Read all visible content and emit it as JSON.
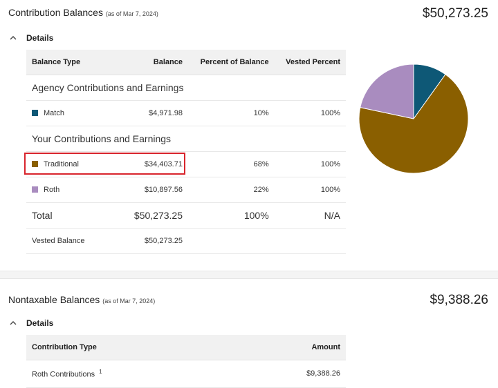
{
  "contribution": {
    "title": "Contribution Balances",
    "as_of": "(as of Mar 7, 2024)",
    "total": "$50,273.25",
    "details_label": "Details",
    "headers": [
      "Balance Type",
      "Balance",
      "Percent of Balance",
      "Vested Percent"
    ],
    "group_agency": "Agency Contributions and Earnings",
    "group_yours": "Your Contributions and Earnings",
    "rows": [
      {
        "name": "Match",
        "balance": "$4,971.98",
        "percent": "10%",
        "vested": "100%",
        "color": "#0e5876"
      },
      {
        "name": "Traditional",
        "balance": "$34,403.71",
        "percent": "68%",
        "vested": "100%",
        "color": "#8a5f00"
      },
      {
        "name": "Roth",
        "balance": "$10,897.56",
        "percent": "22%",
        "vested": "100%",
        "color": "#a98cbf"
      }
    ],
    "total_row": {
      "label": "Total",
      "balance": "$50,273.25",
      "percent": "100%",
      "vested": "N/A"
    },
    "vested_row": {
      "label": "Vested Balance",
      "balance": "$50,273.25"
    }
  },
  "chart_data": {
    "type": "pie",
    "categories": [
      "Match",
      "Traditional",
      "Roth"
    ],
    "values": [
      4971.98,
      34403.71,
      10897.56
    ],
    "colors": [
      "#0e5876",
      "#8a5f00",
      "#a98cbf"
    ]
  },
  "nontaxable": {
    "title": "Nontaxable Balances",
    "as_of": "(as of Mar 7, 2024)",
    "total": "$9,388.26",
    "details_label": "Details",
    "headers": [
      "Contribution Type",
      "Amount"
    ],
    "rows": [
      {
        "name": "Roth Contributions",
        "footnote": "1",
        "amount": "$9,388.26"
      }
    ]
  }
}
